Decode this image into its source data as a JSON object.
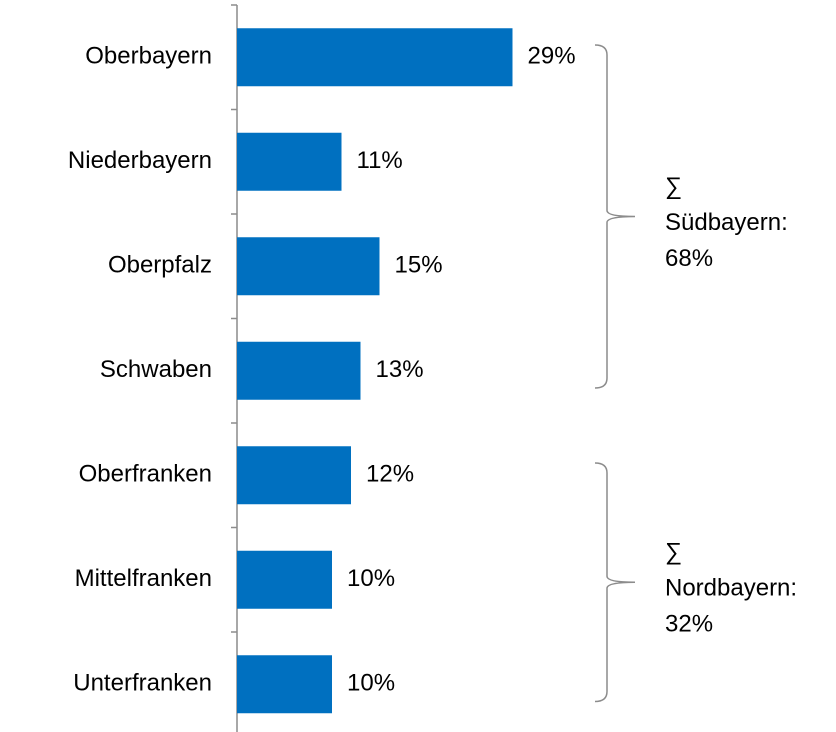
{
  "chart_data": {
    "type": "bar",
    "orientation": "horizontal",
    "categories": [
      "Oberbayern",
      "Niederbayern",
      "Oberpfalz",
      "Schwaben",
      "Oberfranken",
      "Mittelfranken",
      "Unterfranken"
    ],
    "values": [
      29,
      11,
      15,
      13,
      12,
      10,
      10
    ],
    "value_labels": [
      "29%",
      "11%",
      "15%",
      "13%",
      "12%",
      "10%",
      "10%"
    ],
    "color": "#0070c0",
    "annotations": [
      {
        "lines": [
          "∑",
          "Südbayern:",
          "68%"
        ]
      },
      {
        "lines": [
          "∑",
          "Nordbayern:",
          "32%"
        ]
      }
    ]
  }
}
